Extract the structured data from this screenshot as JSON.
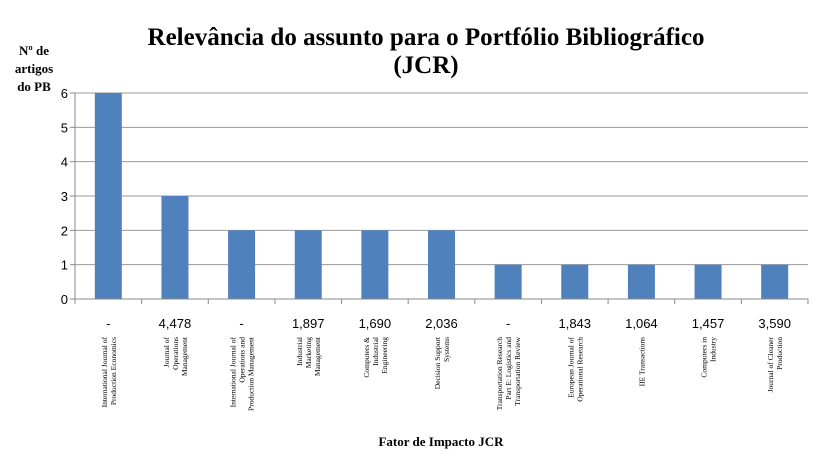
{
  "chart_data": {
    "type": "bar",
    "title_lines": [
      "Relevância do assunto para o Portfólio Bibliográfico",
      "(JCR)"
    ],
    "ylabel_lines": [
      "Nº de",
      "artigos",
      "do PB"
    ],
    "xlabel": "Fator de Impacto  JCR",
    "ylim": [
      0,
      6
    ],
    "yticks": [
      "0",
      "1",
      "2",
      "3",
      "4",
      "5",
      "6"
    ],
    "grid": true,
    "legend": "none",
    "bar_color": "#4f81bd",
    "categories": [
      {
        "impact": "-",
        "name_lines": [
          "International Journal of",
          "Production Economics"
        ]
      },
      {
        "impact": "4,478",
        "name_lines": [
          "Journal of",
          "Operations",
          "Management"
        ]
      },
      {
        "impact": "-",
        "name_lines": [
          "International Journal of",
          "Operations and",
          "Production Management"
        ]
      },
      {
        "impact": "1,897",
        "name_lines": [
          "Industrial",
          "Marketing",
          "Management"
        ]
      },
      {
        "impact": "1,690",
        "name_lines": [
          "Computers &",
          "Industrial",
          "Engineering"
        ]
      },
      {
        "impact": "2,036",
        "name_lines": [
          "Decision Support",
          "Systems"
        ]
      },
      {
        "impact": "-",
        "name_lines": [
          "Transportation Research",
          "Part E: Logistics and",
          "Transportation Review"
        ]
      },
      {
        "impact": "1,843",
        "name_lines": [
          "European Journal of",
          "Operational Research"
        ]
      },
      {
        "impact": "1,064",
        "name_lines": [
          "IIE Transactions"
        ]
      },
      {
        "impact": "1,457",
        "name_lines": [
          "Computers in",
          "Industry"
        ]
      },
      {
        "impact": "3,590",
        "name_lines": [
          "Journal of Cleaner",
          "Production"
        ]
      }
    ],
    "values": [
      6,
      3,
      2,
      2,
      2,
      2,
      1,
      1,
      1,
      1,
      1
    ]
  }
}
